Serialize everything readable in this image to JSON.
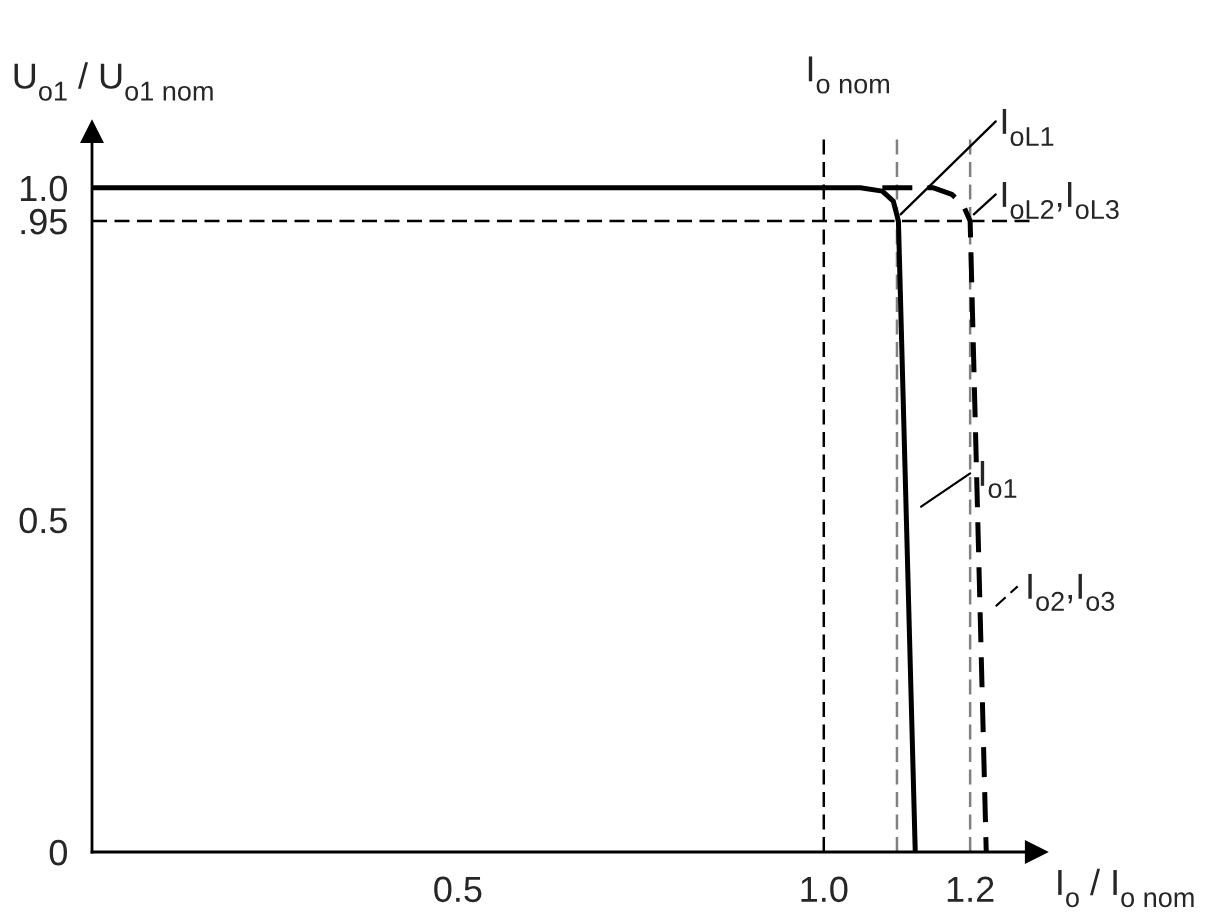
{
  "chart_data": {
    "type": "line",
    "ylabel": "U$_{o1}$ / U$_{o1 nom}$",
    "xlabel": "I$_{o}$ / I$_{o nom}$",
    "series": [
      {
        "name": "I$_{o1}$",
        "color": "#000000",
        "line_style": "solid",
        "x": [
          0,
          1.05,
          1.08,
          1.095,
          1.102,
          1.125
        ],
        "values": [
          1.0,
          1.0,
          0.995,
          0.98,
          0.95,
          0
        ]
      },
      {
        "name": "I$_{o2}$,I$_{o3}$",
        "color": "#000000",
        "line_style": "dashed",
        "x": [
          1.08,
          1.15,
          1.175,
          1.19,
          1.2,
          1.222
        ],
        "values": [
          1.0,
          1.0,
          0.99,
          0.975,
          0.95,
          0
        ]
      }
    ],
    "xlim": [
      0,
      1.29
    ],
    "ylim": [
      0,
      1.084
    ],
    "xticks": [
      0.5,
      {
        "value": 1.0,
        "label": "1.0"
      },
      1.2
    ],
    "yticks": [
      {
        "value": 0,
        "label": "0"
      },
      0.5,
      {
        "value": 0.95,
        "label": ".95"
      },
      {
        "value": 1.0,
        "label": "1.0"
      }
    ],
    "ref_lines": [
      {
        "axis": "x",
        "value": 1.0,
        "label": "I$_{o nom}$",
        "color": "#000000",
        "line_style": "dashed"
      },
      {
        "axis": "x",
        "value": 1.1,
        "color": "#808080",
        "line_style": "dashed"
      },
      {
        "axis": "x",
        "value": 1.2,
        "color": "#808080",
        "line_style": "dashed"
      },
      {
        "axis": "y",
        "value": 0.95,
        "color": "#000000",
        "line_style": "dashed"
      }
    ],
    "annotations": [
      {
        "text": "I$_{oL1}$",
        "x": 1.1,
        "y": 0.95
      },
      {
        "text": "I$_{oL2}$,I$_{oL3}$",
        "x": 1.2,
        "y": 0.95
      }
    ],
    "grid": false,
    "legend": "right",
    "marker": "none"
  }
}
